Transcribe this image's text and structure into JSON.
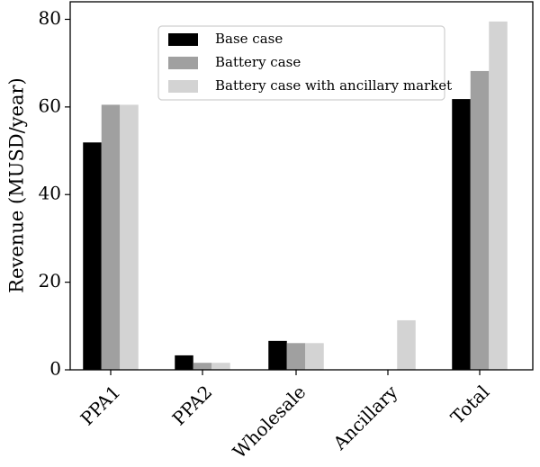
{
  "chart_data": {
    "type": "bar",
    "categories": [
      "PPA1",
      "PPA2",
      "Wholesale",
      "Ancillary",
      "Total"
    ],
    "series": [
      {
        "name": "Base case",
        "color": "#000000",
        "values": [
          51.9,
          3.3,
          6.6,
          0,
          61.8
        ]
      },
      {
        "name": "Battery case",
        "color": "#a0a0a0",
        "values": [
          60.5,
          1.6,
          6.1,
          0,
          68.2
        ]
      },
      {
        "name": "Battery case with ancillary market",
        "color": "#d3d3d3",
        "values": [
          60.5,
          1.6,
          6.1,
          11.3,
          79.5
        ]
      }
    ],
    "title": "",
    "xlabel": "",
    "ylabel": "Revenue (MUSD/year)",
    "ylim": [
      0,
      84
    ],
    "yticks": [
      0,
      20,
      40,
      60,
      80
    ],
    "legend_position": "top-center",
    "grid": false
  }
}
